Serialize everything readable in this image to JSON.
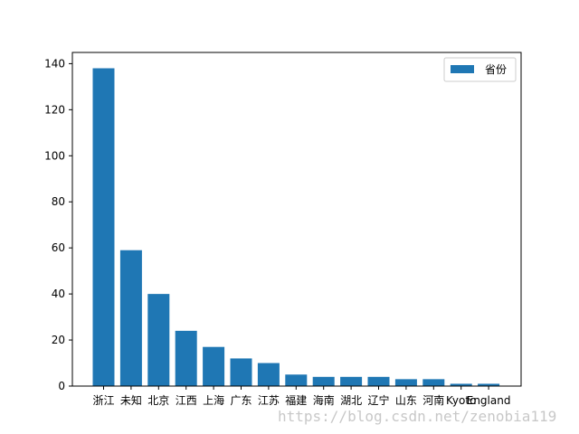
{
  "chart_data": {
    "type": "bar",
    "categories": [
      "浙江",
      "未知",
      "北京",
      "江西",
      "上海",
      "广东",
      "江苏",
      "福建",
      "海南",
      "湖北",
      "辽宁",
      "山东",
      "河南",
      "Kyoto",
      "England"
    ],
    "series": [
      {
        "name": "省份",
        "values": [
          138,
          59,
          40,
          24,
          17,
          12,
          10,
          5,
          4,
          4,
          4,
          3,
          3,
          1,
          1
        ]
      }
    ],
    "ylim": [
      0,
      145
    ],
    "yticks": [
      0,
      20,
      40,
      60,
      80,
      100,
      120,
      140
    ],
    "legend_position": "top-right",
    "bar_color": "#1f77b4",
    "grid": false
  },
  "watermark": "https://blog.csdn.net/zenobia119"
}
